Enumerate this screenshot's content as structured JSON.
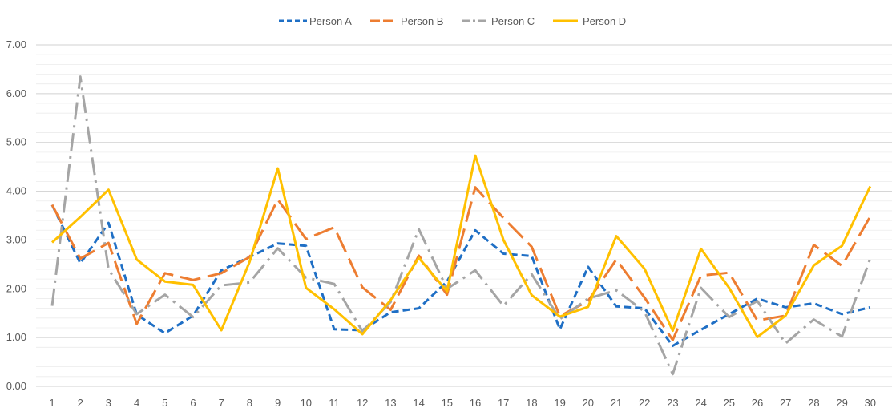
{
  "chart_data": {
    "type": "line",
    "title": "",
    "xlabel": "",
    "ylabel": "",
    "ylim": [
      0,
      7
    ],
    "grid": true,
    "legend_position": "top-center",
    "x": [
      1,
      2,
      3,
      4,
      5,
      6,
      7,
      8,
      9,
      10,
      11,
      12,
      13,
      14,
      15,
      16,
      17,
      18,
      19,
      20,
      21,
      22,
      23,
      24,
      25,
      26,
      27,
      28,
      29,
      30
    ],
    "y_ticks": [
      "0.00",
      "1.00",
      "2.00",
      "3.00",
      "4.00",
      "5.00",
      "6.00",
      "7.00"
    ],
    "series": [
      {
        "name": "Person A",
        "color": "#1F6FC5",
        "dash": "dash",
        "values": [
          3.72,
          2.52,
          3.35,
          1.47,
          1.09,
          1.45,
          2.38,
          2.65,
          2.93,
          2.88,
          1.17,
          1.15,
          1.52,
          1.6,
          2.15,
          3.2,
          2.72,
          2.67,
          1.17,
          2.45,
          1.64,
          1.6,
          0.83,
          1.16,
          1.48,
          1.8,
          1.62,
          1.7,
          1.48,
          1.62
        ]
      },
      {
        "name": "Person B",
        "color": "#ED7D31",
        "dash": "longdash",
        "values": [
          3.72,
          2.62,
          2.94,
          1.28,
          2.32,
          2.18,
          2.32,
          2.65,
          3.83,
          3.02,
          3.26,
          2.03,
          1.57,
          2.68,
          1.88,
          4.08,
          3.45,
          2.86,
          1.44,
          1.75,
          2.6,
          1.82,
          0.95,
          2.27,
          2.33,
          1.35,
          1.45,
          2.9,
          2.47,
          3.48
        ]
      },
      {
        "name": "Person C",
        "color": "#A5A5A5",
        "dash": "dashdot",
        "values": [
          1.65,
          6.35,
          2.4,
          1.48,
          1.88,
          1.42,
          2.07,
          2.13,
          2.83,
          2.23,
          2.1,
          1.13,
          1.73,
          3.22,
          2.0,
          2.38,
          1.65,
          2.3,
          1.38,
          1.8,
          1.97,
          1.53,
          0.25,
          2.02,
          1.42,
          1.75,
          0.88,
          1.37,
          1.02,
          2.62
        ]
      },
      {
        "name": "Person D",
        "color": "#FFC000",
        "dash": "solid",
        "values": [
          2.95,
          3.47,
          4.03,
          2.6,
          2.15,
          2.08,
          1.15,
          2.55,
          4.47,
          2.02,
          1.58,
          1.07,
          1.77,
          2.63,
          1.95,
          4.73,
          3.0,
          1.87,
          1.43,
          1.63,
          3.08,
          2.41,
          1.14,
          2.82,
          2.02,
          1.01,
          1.45,
          2.48,
          2.88,
          4.1
        ]
      }
    ]
  }
}
